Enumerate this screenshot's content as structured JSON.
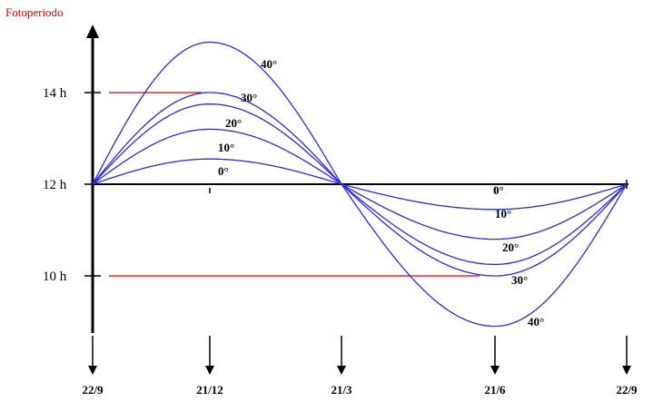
{
  "chart_data": {
    "type": "line",
    "ylabel": "Fotoperiodo",
    "y_ticks": [
      {
        "value": 14,
        "label": "14 h"
      },
      {
        "value": 12,
        "label": "12 h"
      },
      {
        "value": 10,
        "label": "10 h"
      }
    ],
    "x_ticks": [
      "22/9",
      "21/12",
      "21/3",
      "21/6",
      "22/9"
    ],
    "x_positions": [
      0,
      1,
      2,
      3,
      4
    ],
    "baseline": 12,
    "series": [
      {
        "name": "0°",
        "amplitude": 0.55
      },
      {
        "name": "10°",
        "amplitude": 1.2
      },
      {
        "name": "20°",
        "amplitude": 1.75
      },
      {
        "name": "30°",
        "amplitude": 2.0
      },
      {
        "name": "40°",
        "amplitude": 3.1
      }
    ],
    "reference_lines": [
      {
        "value": 14,
        "x_range": [
          0,
          1
        ],
        "color": "#e00000"
      },
      {
        "value": 10,
        "x_range": [
          0,
          3
        ],
        "color": "#e00000"
      }
    ],
    "colors": {
      "series": "#2a2ae0",
      "axis": "#000000",
      "reference": "#e00000",
      "title": "#e00000"
    }
  }
}
